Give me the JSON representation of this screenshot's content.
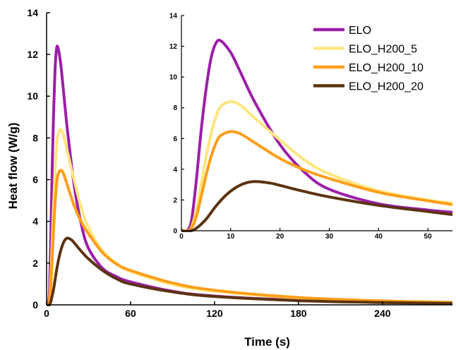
{
  "chart_data": [
    {
      "type": "line",
      "xlabel": "Time (s)",
      "ylabel": "Heat flow (W/g)",
      "xlim": [
        0,
        290
      ],
      "ylim": [
        0,
        14
      ],
      "xticks": [
        0,
        60,
        120,
        180,
        240
      ],
      "yticks": [
        0,
        2,
        4,
        6,
        8,
        10,
        12,
        14
      ],
      "series": [
        {
          "name": "ELO",
          "color": "#9b1fa8",
          "points": [
            [
              0,
              0
            ],
            [
              1,
              0
            ],
            [
              2,
              0.6
            ],
            [
              3,
              3.2
            ],
            [
              4,
              6.5
            ],
            [
              5,
              9.2
            ],
            [
              6,
              11.2
            ],
            [
              7,
              12.2
            ],
            [
              8,
              12.35
            ],
            [
              10,
              11.6
            ],
            [
              12,
              10.3
            ],
            [
              15,
              8.3
            ],
            [
              20,
              5.6
            ],
            [
              25,
              3.8
            ],
            [
              30,
              2.7
            ],
            [
              40,
              1.75
            ],
            [
              50,
              1.35
            ],
            [
              60,
              1.1
            ],
            [
              90,
              0.65
            ],
            [
              120,
              0.42
            ],
            [
              180,
              0.22
            ],
            [
              240,
              0.12
            ],
            [
              290,
              0.08
            ]
          ]
        },
        {
          "name": "ELO_H200_5",
          "color": "#ffe680",
          "points": [
            [
              0,
              0
            ],
            [
              1,
              0
            ],
            [
              2,
              0.2
            ],
            [
              3,
              1.3
            ],
            [
              4,
              3.0
            ],
            [
              5,
              4.8
            ],
            [
              6,
              6.3
            ],
            [
              7,
              7.4
            ],
            [
              8,
              8.1
            ],
            [
              10,
              8.4
            ],
            [
              12,
              8.15
            ],
            [
              15,
              7.3
            ],
            [
              20,
              5.9
            ],
            [
              25,
              4.6
            ],
            [
              30,
              3.7
            ],
            [
              40,
              2.6
            ],
            [
              50,
              2.0
            ],
            [
              60,
              1.6
            ],
            [
              90,
              0.98
            ],
            [
              120,
              0.65
            ],
            [
              180,
              0.33
            ],
            [
              240,
              0.18
            ],
            [
              290,
              0.12
            ]
          ]
        },
        {
          "name": "ELO_H200_10",
          "color": "#ff9e1a",
          "points": [
            [
              0,
              0
            ],
            [
              1,
              0
            ],
            [
              2,
              0.15
            ],
            [
              3,
              0.9
            ],
            [
              4,
              2.2
            ],
            [
              5,
              3.6
            ],
            [
              6,
              4.8
            ],
            [
              7,
              5.7
            ],
            [
              8,
              6.2
            ],
            [
              10,
              6.45
            ],
            [
              12,
              6.3
            ],
            [
              15,
              5.7
            ],
            [
              20,
              4.7
            ],
            [
              25,
              3.95
            ],
            [
              30,
              3.4
            ],
            [
              40,
              2.5
            ],
            [
              50,
              1.95
            ],
            [
              60,
              1.65
            ],
            [
              90,
              1.05
            ],
            [
              120,
              0.7
            ],
            [
              180,
              0.35
            ],
            [
              240,
              0.19
            ],
            [
              290,
              0.12
            ]
          ]
        },
        {
          "name": "ELO_H200_20",
          "color": "#5c3310",
          "points": [
            [
              0,
              0
            ],
            [
              1,
              -0.05
            ],
            [
              2,
              0
            ],
            [
              3,
              0.15
            ],
            [
              5,
              0.75
            ],
            [
              7,
              1.6
            ],
            [
              9,
              2.3
            ],
            [
              11,
              2.8
            ],
            [
              13,
              3.1
            ],
            [
              15,
              3.2
            ],
            [
              18,
              3.1
            ],
            [
              20,
              2.95
            ],
            [
              25,
              2.55
            ],
            [
              30,
              2.2
            ],
            [
              40,
              1.65
            ],
            [
              50,
              1.25
            ],
            [
              60,
              1.0
            ],
            [
              90,
              0.62
            ],
            [
              120,
              0.4
            ],
            [
              180,
              0.2
            ],
            [
              240,
              0.11
            ],
            [
              290,
              0.07
            ]
          ]
        }
      ]
    },
    {
      "type": "line",
      "inset": true,
      "xlim": [
        0,
        55
      ],
      "ylim": [
        0,
        14
      ],
      "xticks": [
        0,
        10,
        20,
        30,
        40,
        50
      ],
      "yticks": [
        0,
        2,
        4,
        6,
        8,
        10,
        12,
        14
      ],
      "legend_position": "top-right",
      "series": [
        {
          "name": "ELO",
          "color": "#9b1fa8",
          "points": [
            [
              0,
              0
            ],
            [
              1,
              0
            ],
            [
              2,
              0.6
            ],
            [
              3,
              3.2
            ],
            [
              4,
              6.5
            ],
            [
              5,
              9.2
            ],
            [
              6,
              11.2
            ],
            [
              7,
              12.2
            ],
            [
              8,
              12.35
            ],
            [
              10,
              11.6
            ],
            [
              12,
              10.3
            ],
            [
              15,
              8.3
            ],
            [
              20,
              5.6
            ],
            [
              25,
              3.8
            ],
            [
              30,
              2.7
            ],
            [
              40,
              1.75
            ],
            [
              50,
              1.35
            ],
            [
              55,
              1.2
            ]
          ]
        },
        {
          "name": "ELO_H200_5",
          "color": "#ffe680",
          "points": [
            [
              0,
              0
            ],
            [
              1,
              0
            ],
            [
              2,
              0.2
            ],
            [
              3,
              1.3
            ],
            [
              4,
              3.0
            ],
            [
              5,
              4.8
            ],
            [
              6,
              6.3
            ],
            [
              7,
              7.4
            ],
            [
              8,
              8.1
            ],
            [
              10,
              8.4
            ],
            [
              12,
              8.15
            ],
            [
              15,
              7.3
            ],
            [
              20,
              5.9
            ],
            [
              25,
              4.6
            ],
            [
              30,
              3.7
            ],
            [
              40,
              2.6
            ],
            [
              50,
              2.0
            ],
            [
              55,
              1.8
            ]
          ]
        },
        {
          "name": "ELO_H200_10",
          "color": "#ff9e1a",
          "points": [
            [
              0,
              0
            ],
            [
              1,
              0
            ],
            [
              2,
              0.15
            ],
            [
              3,
              0.9
            ],
            [
              4,
              2.2
            ],
            [
              5,
              3.6
            ],
            [
              6,
              4.8
            ],
            [
              7,
              5.7
            ],
            [
              8,
              6.2
            ],
            [
              10,
              6.45
            ],
            [
              12,
              6.3
            ],
            [
              15,
              5.7
            ],
            [
              20,
              4.7
            ],
            [
              25,
              3.95
            ],
            [
              30,
              3.4
            ],
            [
              40,
              2.5
            ],
            [
              50,
              1.95
            ],
            [
              55,
              1.7
            ]
          ]
        },
        {
          "name": "ELO_H200_20",
          "color": "#5c3310",
          "points": [
            [
              0,
              0
            ],
            [
              1,
              -0.05
            ],
            [
              2,
              0
            ],
            [
              3,
              0.15
            ],
            [
              5,
              0.75
            ],
            [
              7,
              1.6
            ],
            [
              9,
              2.3
            ],
            [
              11,
              2.8
            ],
            [
              13,
              3.1
            ],
            [
              15,
              3.2
            ],
            [
              18,
              3.1
            ],
            [
              20,
              2.95
            ],
            [
              25,
              2.55
            ],
            [
              30,
              2.2
            ],
            [
              40,
              1.65
            ],
            [
              50,
              1.25
            ],
            [
              55,
              1.05
            ]
          ]
        }
      ]
    }
  ]
}
